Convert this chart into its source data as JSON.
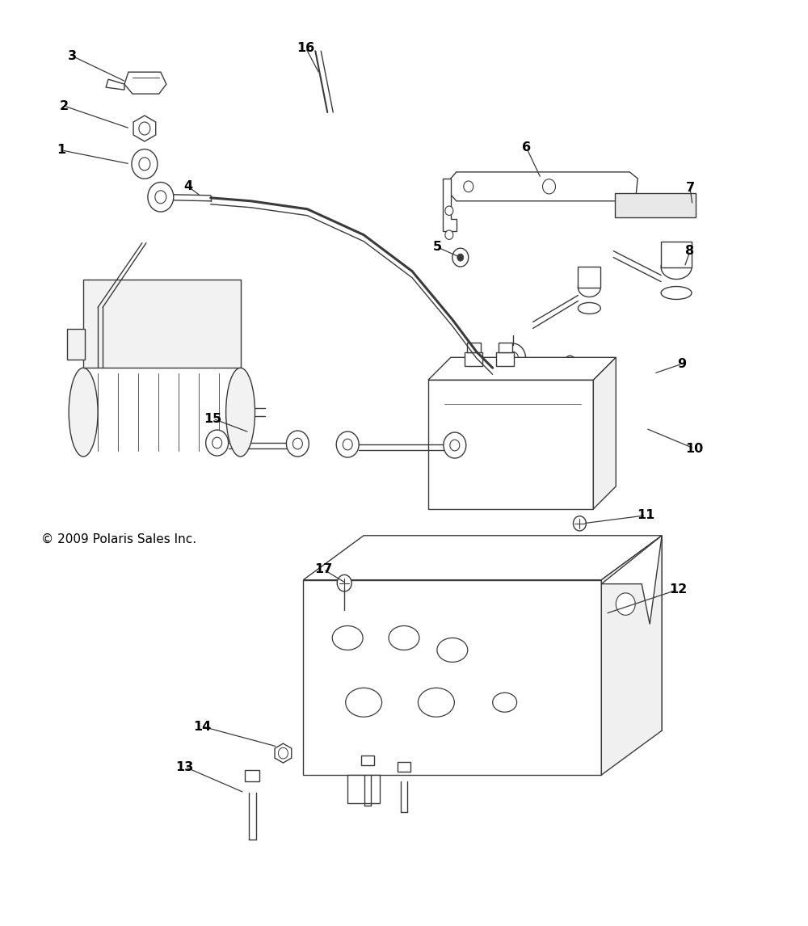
{
  "bg_color": "#ffffff",
  "line_color": "#3a3a3a",
  "label_color": "#000000",
  "copyright_text": "© 2009 Polaris Sales Inc.",
  "figwidth": 10.0,
  "figheight": 11.46,
  "dpi": 100,
  "label_fontsize": 11.5,
  "copyright_fontsize": 11
}
